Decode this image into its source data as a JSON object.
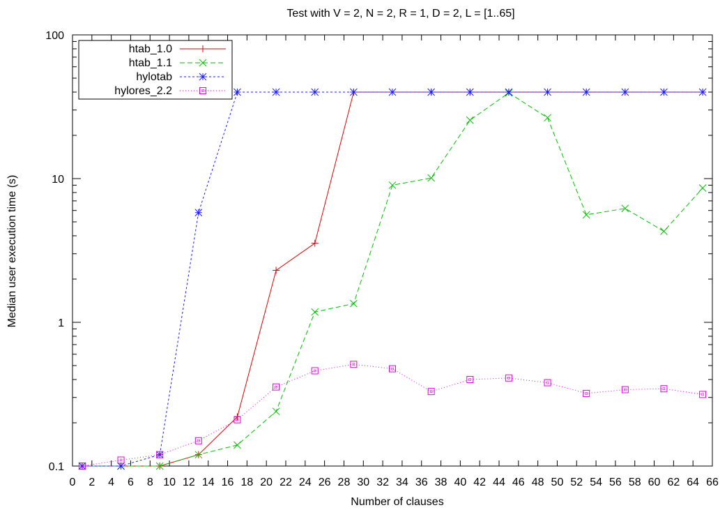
{
  "chart_data": {
    "type": "line",
    "title": "Test with V = 2, N = 2, R = 1, D = 2, L = [1..65]",
    "xlabel": "Number of clauses",
    "ylabel": "Median user execution time (s)",
    "xlim": [
      0,
      66
    ],
    "ylim": [
      0.1,
      100
    ],
    "yscale": "log",
    "xticks": [
      0,
      2,
      4,
      6,
      8,
      10,
      12,
      14,
      16,
      18,
      20,
      22,
      24,
      26,
      28,
      30,
      32,
      34,
      36,
      38,
      40,
      42,
      44,
      46,
      48,
      50,
      52,
      54,
      56,
      58,
      60,
      62,
      64,
      66
    ],
    "yticks": [
      {
        "value": 0.1,
        "label": "0.1"
      },
      {
        "value": 1,
        "label": "1"
      },
      {
        "value": 10,
        "label": "10"
      },
      {
        "value": 100,
        "label": "100"
      }
    ],
    "legend_position": "top-left",
    "grid": false,
    "series": [
      {
        "name": "htab_1.0",
        "color": "#e00000",
        "dash": "",
        "marker": "plus",
        "x": [
          1,
          5,
          9,
          13,
          17,
          21,
          25,
          29,
          33,
          37,
          41,
          45,
          49,
          53,
          57,
          61,
          65
        ],
        "y": [
          0.1,
          0.1,
          0.1,
          0.12,
          0.22,
          2.3,
          3.55,
          40,
          40,
          40,
          40,
          40,
          40,
          40,
          40,
          40,
          40
        ]
      },
      {
        "name": "htab_1.1",
        "color": "#00c000",
        "dash": "7,4",
        "marker": "cross",
        "x": [
          1,
          5,
          9,
          13,
          17,
          21,
          25,
          29,
          33,
          37,
          41,
          45,
          49,
          53,
          57,
          61,
          65
        ],
        "y": [
          0.1,
          0.1,
          0.1,
          0.12,
          0.14,
          0.24,
          1.18,
          1.35,
          9.0,
          10.1,
          25.5,
          39.5,
          26.5,
          5.6,
          6.2,
          4.3,
          8.6
        ]
      },
      {
        "name": "hylotab",
        "color": "#1a1aff",
        "dash": "3,3",
        "marker": "star",
        "x": [
          1,
          5,
          9,
          13,
          17,
          21,
          25,
          29,
          33,
          37,
          41,
          45,
          49,
          53,
          57,
          61,
          65
        ],
        "y": [
          0.1,
          0.1,
          0.12,
          5.8,
          40,
          40,
          40,
          40,
          40,
          40,
          40,
          40,
          40,
          40,
          40,
          40,
          40
        ]
      },
      {
        "name": "hylores_2.2",
        "color": "#e000e0",
        "dash": "1,3",
        "marker": "square",
        "x": [
          1,
          5,
          9,
          13,
          17,
          21,
          25,
          29,
          33,
          37,
          41,
          45,
          49,
          53,
          57,
          61,
          65
        ],
        "y": [
          0.1,
          0.11,
          0.12,
          0.15,
          0.21,
          0.355,
          0.46,
          0.51,
          0.475,
          0.33,
          0.4,
          0.41,
          0.38,
          0.32,
          0.34,
          0.345,
          0.315
        ]
      }
    ]
  }
}
